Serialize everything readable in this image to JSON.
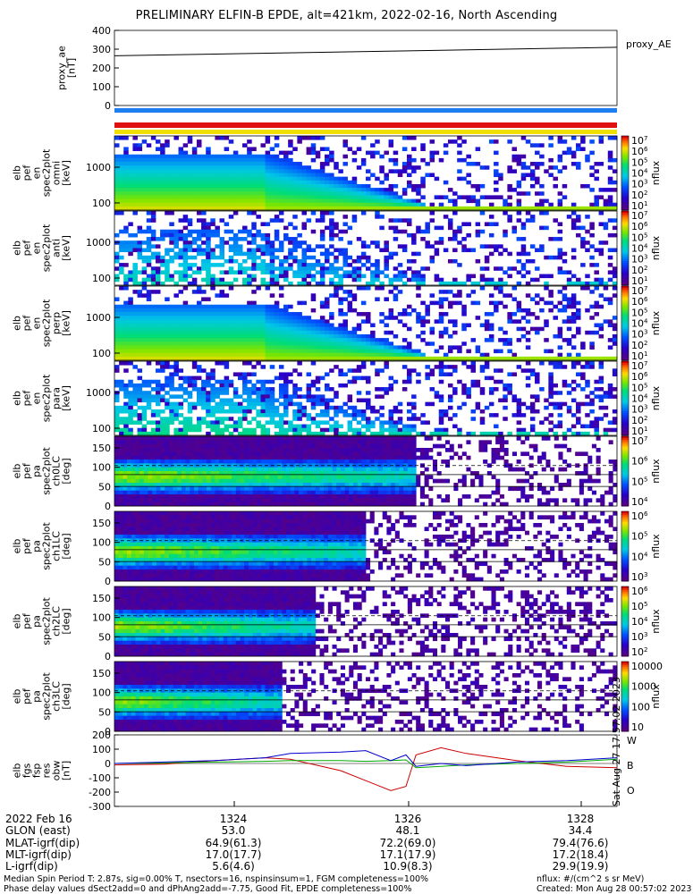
{
  "title": "PRELIMINARY ELFIN-B EPDE, alt=421km, 2022-02-16, North Ascending",
  "ae_panel": {
    "ylabel": "proxy_ae\n[nT]",
    "legend": "proxy_AE",
    "ticks": [
      "400",
      "300",
      "200",
      "100",
      "0"
    ]
  },
  "spec_panels": [
    {
      "ylabel": [
        "elb",
        "pef",
        "en",
        "spec2plot",
        "omni",
        "[keV]"
      ],
      "ticks": [
        "1000",
        "100"
      ],
      "cbar_label": "nflux",
      "cbar_ticks": [
        "10^7",
        "10^6",
        "10^5",
        "10^4",
        "10^3",
        "10^2",
        "10^1"
      ]
    },
    {
      "ylabel": [
        "elb",
        "pef",
        "en",
        "spec2plot",
        "anti",
        "[keV]"
      ],
      "ticks": [
        "1000",
        "100"
      ],
      "cbar_label": "nflux",
      "cbar_ticks": [
        "10^7",
        "10^6",
        "10^5",
        "10^4",
        "10^3",
        "10^2",
        "10^1"
      ]
    },
    {
      "ylabel": [
        "elb",
        "pef",
        "en",
        "spec2plot",
        "perp",
        "[keV]"
      ],
      "ticks": [
        "1000",
        "100"
      ],
      "cbar_label": "nflux",
      "cbar_ticks": [
        "10^7",
        "10^6",
        "10^5",
        "10^4",
        "10^3",
        "10^2",
        "10^1"
      ]
    },
    {
      "ylabel": [
        "elb",
        "pef",
        "en",
        "spec2plot",
        "para",
        "[keV]"
      ],
      "ticks": [
        "1000",
        "100"
      ],
      "cbar_label": "nflux",
      "cbar_ticks": [
        "10^7",
        "10^6",
        "10^5",
        "10^4",
        "10^3",
        "10^2",
        "10^1"
      ]
    }
  ],
  "pa_panels": [
    {
      "ylabel": [
        "elb",
        "pef",
        "pa",
        "spec2plot",
        "ch0LC",
        "[deg]"
      ],
      "ticks": [
        "150",
        "100",
        "50",
        "0"
      ],
      "cbar_label": "nflux",
      "cbar_ticks": [
        "10^7",
        "10^6",
        "10^5",
        "10^4"
      ]
    },
    {
      "ylabel": [
        "elb",
        "pef",
        "pa",
        "spec2plot",
        "ch1LC",
        "[deg]"
      ],
      "ticks": [
        "150",
        "100",
        "50",
        "0"
      ],
      "cbar_label": "nflux",
      "cbar_ticks": [
        "10^6",
        "10^5",
        "10^4",
        "10^3"
      ]
    },
    {
      "ylabel": [
        "elb",
        "pef",
        "pa",
        "spec2plot",
        "ch2LC",
        "[deg]"
      ],
      "ticks": [
        "150",
        "100",
        "50",
        "0"
      ],
      "cbar_label": "nflux",
      "cbar_ticks": [
        "10^6",
        "10^5",
        "10^4",
        "10^3",
        "10^2"
      ]
    },
    {
      "ylabel": [
        "elb",
        "pef",
        "pa",
        "spec2plot",
        "ch3LC",
        "[deg]"
      ],
      "ticks": [
        "150",
        "100",
        "50",
        "0"
      ],
      "cbar_label": "nflux",
      "cbar_ticks": [
        "10000",
        "1000",
        "100",
        "10"
      ]
    }
  ],
  "mag_panel": {
    "ylabel": [
      "elb",
      "fgs",
      "fsp",
      "res",
      "obw",
      "[nT]"
    ],
    "ticks": [
      "200",
      "100",
      "0",
      "-100",
      "-200",
      "-300"
    ],
    "legend": [
      "W",
      "B",
      "O"
    ],
    "side_text": "Sat Aug 27 17:57:02 2023"
  },
  "chart_data": [
    {
      "type": "line",
      "title": "proxy_AE",
      "xlabel": "",
      "ylabel": "proxy_ae [nT]",
      "ylim": [
        0,
        400
      ],
      "x_minutes": [
        0,
        1
      ],
      "series": [
        {
          "name": "proxy_AE",
          "values": [
            265,
            310
          ]
        }
      ]
    },
    {
      "type": "line",
      "title": "",
      "ylabel": "[nT]",
      "ylim": [
        -300,
        200
      ],
      "x_fraction_note": "three components over time",
      "x": [
        0,
        0.1,
        0.2,
        0.3,
        0.35,
        0.45,
        0.5,
        0.55,
        0.58,
        0.6,
        0.65,
        0.7,
        0.8,
        0.9,
        1.0
      ],
      "series": [
        {
          "name": "W",
          "color": "#cc0000",
          "values": [
            -10,
            -5,
            20,
            40,
            30,
            -50,
            -120,
            -190,
            -160,
            60,
            110,
            70,
            20,
            -20,
            -30
          ]
        },
        {
          "name": "B",
          "color": "#00aa00",
          "values": [
            0,
            5,
            10,
            15,
            20,
            20,
            15,
            20,
            25,
            -30,
            -20,
            -10,
            0,
            10,
            30
          ]
        },
        {
          "name": "O",
          "color": "#0000cc",
          "values": [
            0,
            10,
            20,
            40,
            70,
            80,
            90,
            20,
            60,
            -20,
            0,
            -15,
            10,
            20,
            40
          ]
        }
      ]
    }
  ],
  "x_axis": {
    "rows": [
      {
        "label": "2022 Feb 16",
        "values": [
          "1324",
          "1326",
          "1328"
        ]
      },
      {
        "label": "GLON (east)",
        "values": [
          "53.0",
          "48.1",
          "34.4"
        ]
      },
      {
        "label": "MLAT-igrf(dip)",
        "values": [
          "64.9(61.3)",
          "72.2(69.0)",
          "79.4(76.6)"
        ]
      },
      {
        "label": "MLT-igrf(dip)",
        "values": [
          "17.0(17.7)",
          "17.1(17.9)",
          "17.2(18.4)"
        ]
      },
      {
        "label": "L-igrf(dip)",
        "values": [
          "5.6(4.6)",
          "10.9(8.3)",
          "29.9(19.9)"
        ]
      }
    ]
  },
  "footer": {
    "line1": "Median Spin Period T: 2.87s, sig=0.00% T, nsectors=16, nspinsinsum=1, FGM completeness=100%",
    "line2": "Phase delay values dSect2add=0 and dPhAng2add=-7.75, Good Fit, EPDE completeness=100%",
    "right1": "nflux: #/(cm^2 s sr MeV)",
    "right2": "Created: Mon Aug 28 00:57:02 2023"
  }
}
